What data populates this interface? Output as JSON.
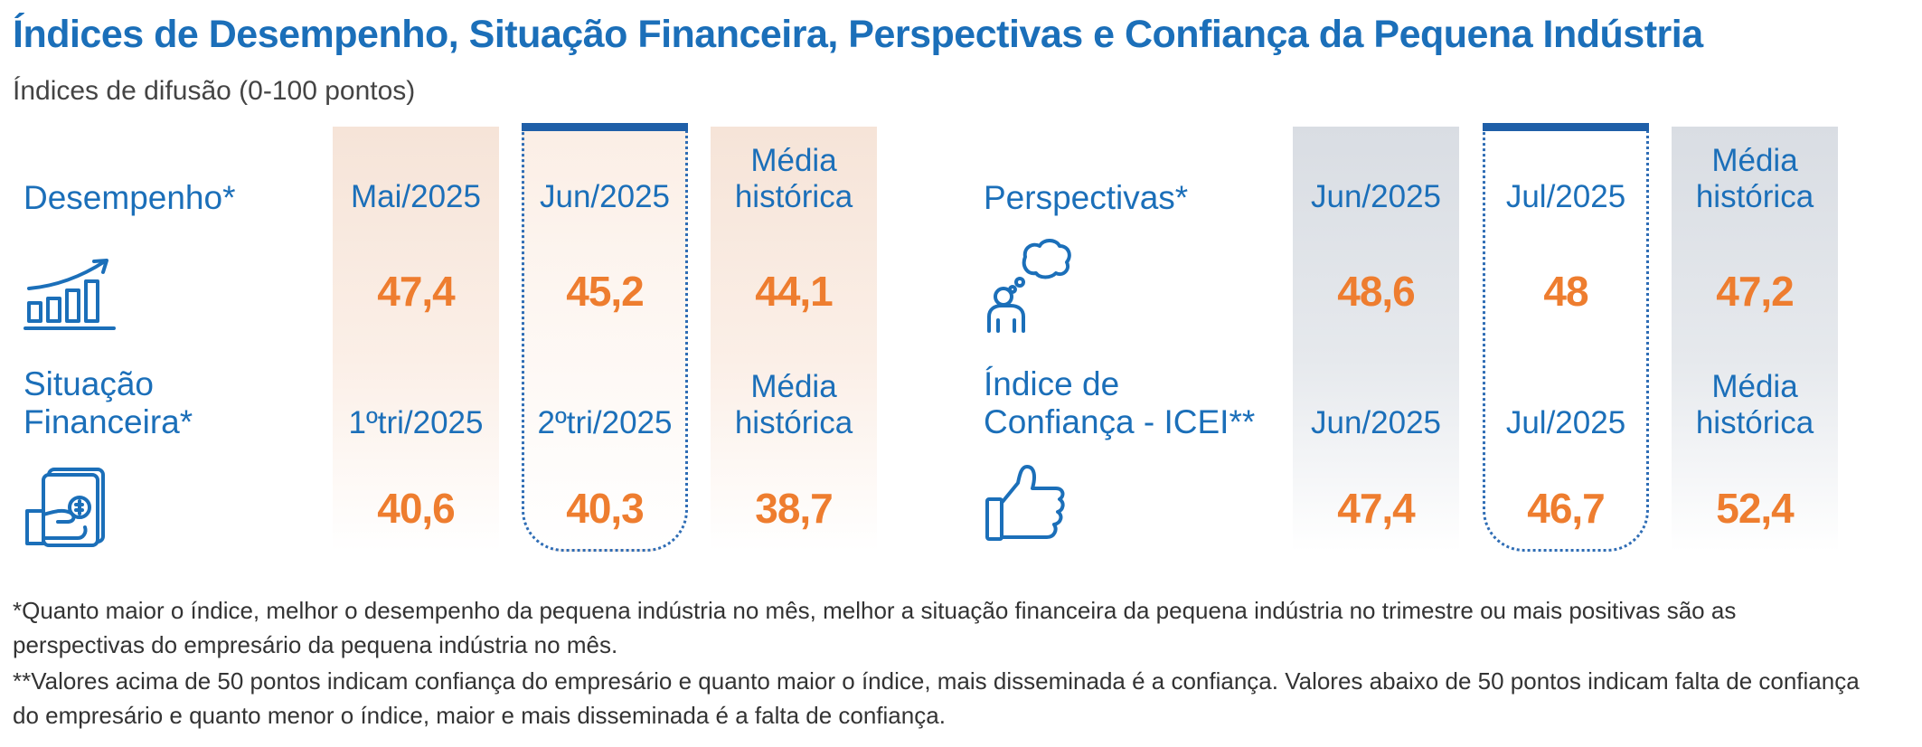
{
  "title": "Índices de Desempenho, Situação Financeira, Perspectivas e Confiança da Pequena Indústria",
  "subtitle": "Índices de difusão (0-100 pontos)",
  "left_panel": {
    "rows": [
      {
        "label": "Desempenho*",
        "icon": "growth-bar-chart-icon",
        "columns": [
          "Mai/2025",
          "Jun/2025",
          "Média histórica"
        ],
        "values": [
          "47,4",
          "45,2",
          "44,1"
        ]
      },
      {
        "label_line1": "Situação",
        "label_line2": "Financeira*",
        "icon": "hand-holding-money-icon",
        "columns": [
          "1ºtri/2025",
          "2ºtri/2025",
          "Média histórica"
        ],
        "values": [
          "40,6",
          "40,3",
          "38,7"
        ]
      }
    ]
  },
  "right_panel": {
    "rows": [
      {
        "label": "Perspectivas*",
        "icon": "person-thinking-icon",
        "columns": [
          "Jun/2025",
          "Jul/2025",
          "Média histórica"
        ],
        "values": [
          "48,6",
          "48",
          "47,2"
        ]
      },
      {
        "label_line1": "Índice de",
        "label_line2": "Confiança - ICEI**",
        "icon": "thumbs-up-icon",
        "columns": [
          "Jun/2025",
          "Jul/2025",
          "Média histórica"
        ],
        "values": [
          "47,4",
          "46,7",
          "52,4"
        ]
      }
    ]
  },
  "media_line1": "Média",
  "media_line2": "histórica",
  "footnotes": [
    "*Quanto maior o índice, melhor o desempenho da pequena indústria no mês, melhor a situação financeira da pequena indústria no trimestre ou mais positivas são as",
    "perspectivas do empresário da pequena indústria no mês.",
    "**Valores acima de 50 pontos indicam confiança do empresário e quanto maior o índice, mais disseminada é a confiança. Valores abaixo de 50 pontos indicam falta de confiança",
    "do empresário e quanto menor o índice, maior e mais disseminada é a falta de confiança."
  ],
  "colors": {
    "blue": "#1b6fb9",
    "orange": "#ee7d2f",
    "dark_blue": "#1f5fa8"
  }
}
